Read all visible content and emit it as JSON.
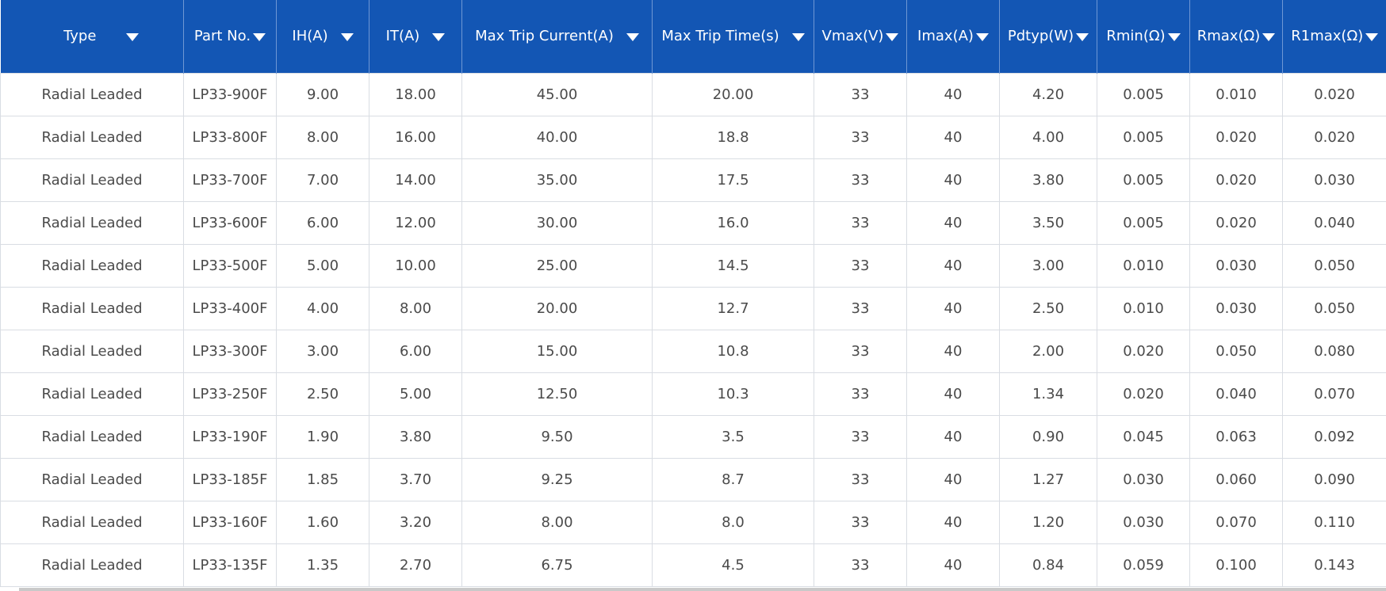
{
  "columns": [
    {
      "label": "Type"
    },
    {
      "label": "Part No."
    },
    {
      "label": "IH(A)"
    },
    {
      "label": "IT(A)"
    },
    {
      "label": "Max Trip Current(A)"
    },
    {
      "label": "Max Trip Time(s)"
    },
    {
      "label": "Vmax(V)"
    },
    {
      "label": "Imax(A)"
    },
    {
      "label": "Pdtyp(W)"
    },
    {
      "label": "Rmin(Ω)"
    },
    {
      "label": "Rmax(Ω)"
    },
    {
      "label": "R1max(Ω)"
    }
  ],
  "rows": [
    [
      "Radial Leaded",
      "LP33-900F",
      "9.00",
      "18.00",
      "45.00",
      "20.00",
      "33",
      "40",
      "4.20",
      "0.005",
      "0.010",
      "0.020"
    ],
    [
      "Radial Leaded",
      "LP33-800F",
      "8.00",
      "16.00",
      "40.00",
      "18.8",
      "33",
      "40",
      "4.00",
      "0.005",
      "0.020",
      "0.020"
    ],
    [
      "Radial Leaded",
      "LP33-700F",
      "7.00",
      "14.00",
      "35.00",
      "17.5",
      "33",
      "40",
      "3.80",
      "0.005",
      "0.020",
      "0.030"
    ],
    [
      "Radial Leaded",
      "LP33-600F",
      "6.00",
      "12.00",
      "30.00",
      "16.0",
      "33",
      "40",
      "3.50",
      "0.005",
      "0.020",
      "0.040"
    ],
    [
      "Radial Leaded",
      "LP33-500F",
      "5.00",
      "10.00",
      "25.00",
      "14.5",
      "33",
      "40",
      "3.00",
      "0.010",
      "0.030",
      "0.050"
    ],
    [
      "Radial Leaded",
      "LP33-400F",
      "4.00",
      "8.00",
      "20.00",
      "12.7",
      "33",
      "40",
      "2.50",
      "0.010",
      "0.030",
      "0.050"
    ],
    [
      "Radial Leaded",
      "LP33-300F",
      "3.00",
      "6.00",
      "15.00",
      "10.8",
      "33",
      "40",
      "2.00",
      "0.020",
      "0.050",
      "0.080"
    ],
    [
      "Radial Leaded",
      "LP33-250F",
      "2.50",
      "5.00",
      "12.50",
      "10.3",
      "33",
      "40",
      "1.34",
      "0.020",
      "0.040",
      "0.070"
    ],
    [
      "Radial Leaded",
      "LP33-190F",
      "1.90",
      "3.80",
      "9.50",
      "3.5",
      "33",
      "40",
      "0.90",
      "0.045",
      "0.063",
      "0.092"
    ],
    [
      "Radial Leaded",
      "LP33-185F",
      "1.85",
      "3.70",
      "9.25",
      "8.7",
      "33",
      "40",
      "1.27",
      "0.030",
      "0.060",
      "0.090"
    ],
    [
      "Radial Leaded",
      "LP33-160F",
      "1.60",
      "3.20",
      "8.00",
      "8.0",
      "33",
      "40",
      "1.20",
      "0.030",
      "0.070",
      "0.110"
    ],
    [
      "Radial Leaded",
      "LP33-135F",
      "1.35",
      "2.70",
      "6.75",
      "4.5",
      "33",
      "40",
      "0.84",
      "0.059",
      "0.100",
      "0.143"
    ]
  ],
  "theme": {
    "header_bg": "#1356b4",
    "header_text": "#ffffff",
    "cell_text": "#4a4a4a",
    "grid_line": "#d9dde3"
  },
  "icons": {
    "sort": "caret-down-icon"
  }
}
